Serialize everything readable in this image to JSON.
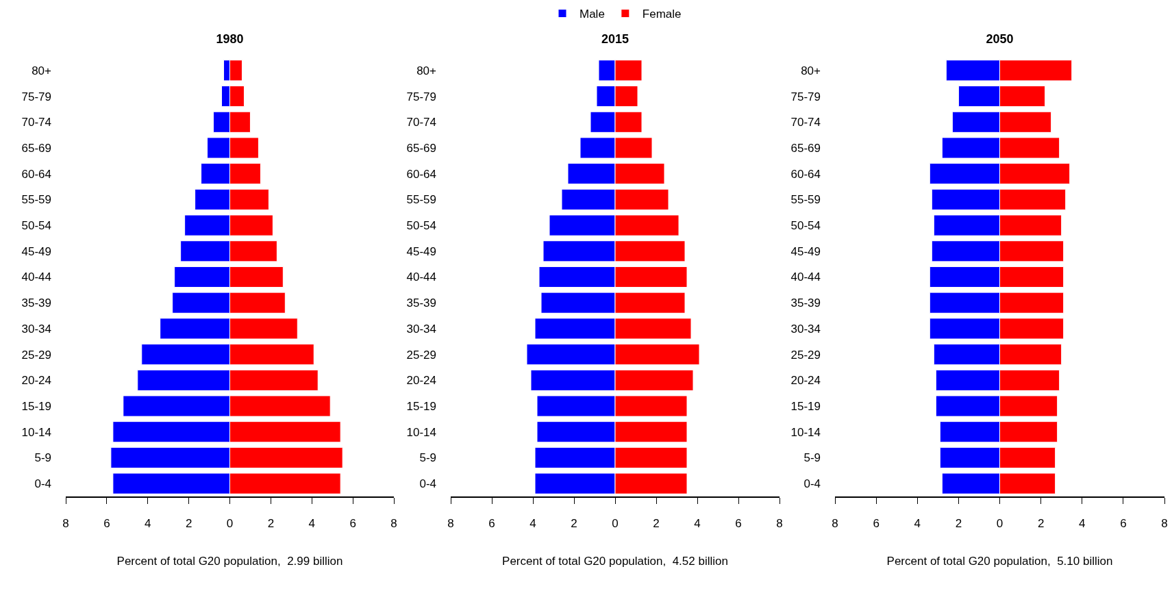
{
  "chart_data": [
    {
      "type": "bar",
      "orientation": "horizontal",
      "stacked": true,
      "title": "1980",
      "xlabel": "Percent of total G20 population,  2.99 billion",
      "categories": [
        "80+",
        "75-79",
        "70-74",
        "65-69",
        "60-64",
        "55-59",
        "50-54",
        "45-49",
        "40-44",
        "35-39",
        "30-34",
        "25-29",
        "20-24",
        "15-19",
        "10-14",
        "5-9",
        "0-4"
      ],
      "series": [
        {
          "color": "#0000ff",
          "values": [
            -0.3,
            -0.4,
            -0.8,
            -1.1,
            -1.4,
            -1.7,
            -2.2,
            -2.4,
            -2.7,
            -2.8,
            -3.4,
            -4.3,
            -4.5,
            -5.2,
            -5.7,
            -5.8,
            -5.7
          ]
        },
        {
          "color": "#ff0000",
          "values": [
            0.6,
            0.7,
            1.0,
            1.4,
            1.5,
            1.9,
            2.1,
            2.3,
            2.6,
            2.7,
            3.3,
            4.1,
            4.3,
            4.9,
            5.4,
            5.5,
            5.4
          ]
        }
      ],
      "xlim": [
        -8,
        8
      ],
      "xticks": [
        {
          "value": -8,
          "label": "8"
        },
        {
          "value": -6,
          "label": "6"
        },
        {
          "value": -4,
          "label": "4"
        },
        {
          "value": -2,
          "label": "2"
        },
        0,
        2,
        4,
        6,
        8
      ]
    },
    {
      "type": "bar",
      "orientation": "horizontal",
      "stacked": true,
      "title": "2015",
      "xlabel": "Percent of total G20 population,  4.52 billion",
      "categories": [
        "80+",
        "75-79",
        "70-74",
        "65-69",
        "60-64",
        "55-59",
        "50-54",
        "45-49",
        "40-44",
        "35-39",
        "30-34",
        "25-29",
        "20-24",
        "15-19",
        "10-14",
        "5-9",
        "0-4"
      ],
      "series": [
        {
          "name": "Male",
          "color": "#0000ff",
          "values": [
            -0.8,
            -0.9,
            -1.2,
            -1.7,
            -2.3,
            -2.6,
            -3.2,
            -3.5,
            -3.7,
            -3.6,
            -3.9,
            -4.3,
            -4.1,
            -3.8,
            -3.8,
            -3.9,
            -3.9
          ]
        },
        {
          "name": "Female",
          "color": "#ff0000",
          "values": [
            1.3,
            1.1,
            1.3,
            1.8,
            2.4,
            2.6,
            3.1,
            3.4,
            3.5,
            3.4,
            3.7,
            4.1,
            3.8,
            3.5,
            3.5,
            3.5,
            3.5
          ]
        }
      ],
      "xlim": [
        -8,
        8
      ],
      "xticks": [
        {
          "value": -8,
          "label": "8"
        },
        {
          "value": -6,
          "label": "6"
        },
        {
          "value": -4,
          "label": "4"
        },
        {
          "value": -2,
          "label": "2"
        },
        0,
        2,
        4,
        6,
        8
      ],
      "legend": "top"
    },
    {
      "type": "bar",
      "orientation": "horizontal",
      "stacked": true,
      "title": "2050",
      "xlabel": "Percent of total G20 population,  5.10 billion",
      "categories": [
        "80+",
        "75-79",
        "70-74",
        "65-69",
        "60-64",
        "55-59",
        "50-54",
        "45-49",
        "40-44",
        "35-39",
        "30-34",
        "25-29",
        "20-24",
        "15-19",
        "10-14",
        "5-9",
        "0-4"
      ],
      "series": [
        {
          "color": "#0000ff",
          "values": [
            -2.6,
            -2.0,
            -2.3,
            -2.8,
            -3.4,
            -3.3,
            -3.2,
            -3.3,
            -3.4,
            -3.4,
            -3.4,
            -3.2,
            -3.1,
            -3.1,
            -2.9,
            -2.9,
            -2.8
          ]
        },
        {
          "color": "#ff0000",
          "values": [
            3.5,
            2.2,
            2.5,
            2.9,
            3.4,
            3.2,
            3.0,
            3.1,
            3.1,
            3.1,
            3.1,
            3.0,
            2.9,
            2.8,
            2.8,
            2.7,
            2.7
          ]
        }
      ],
      "xlim": [
        -8,
        8
      ],
      "xticks": [
        {
          "value": -8,
          "label": "8"
        },
        {
          "value": -6,
          "label": "6"
        },
        {
          "value": -4,
          "label": "4"
        },
        {
          "value": -2,
          "label": "2"
        },
        0,
        2,
        4,
        6,
        8
      ]
    }
  ]
}
